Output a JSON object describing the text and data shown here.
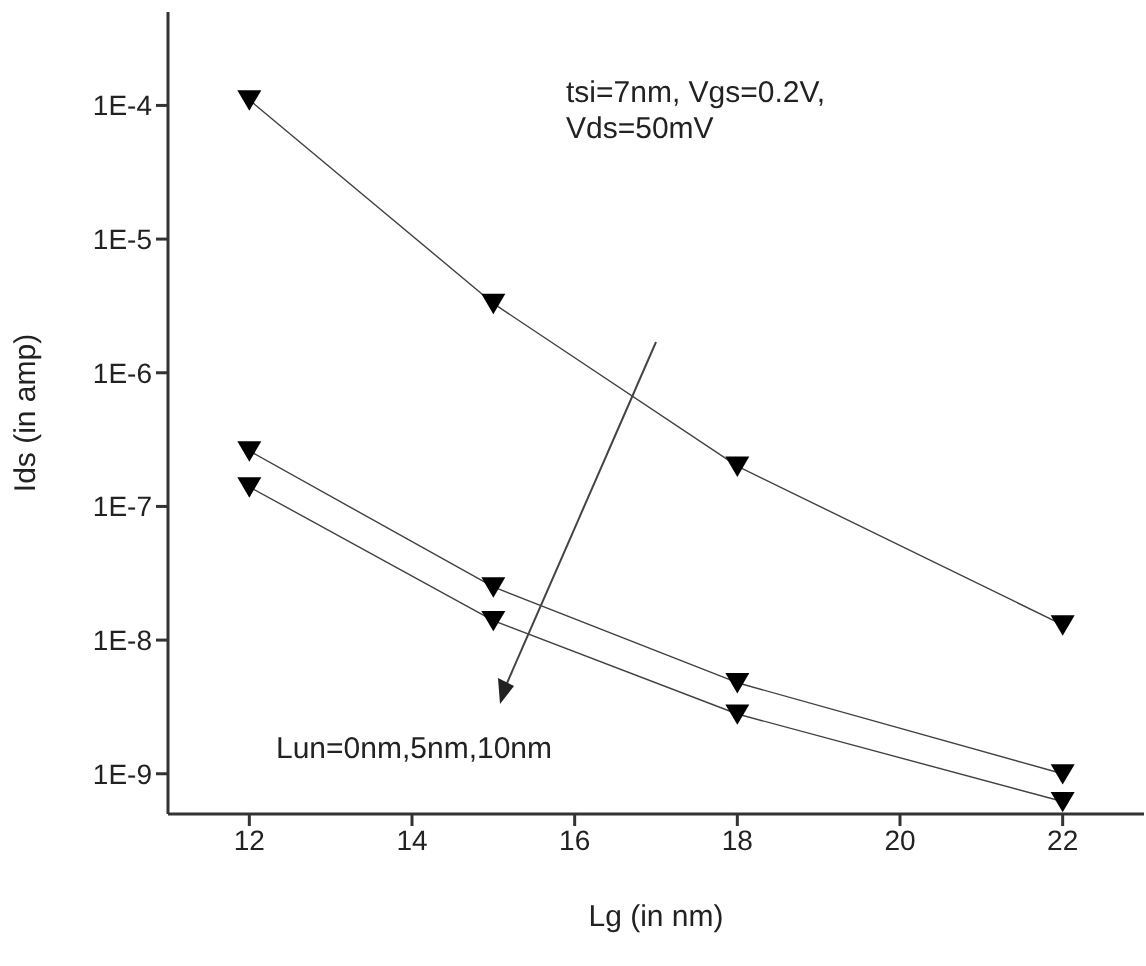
{
  "chart_data": {
    "type": "line",
    "xlabel": "Lg (in nm)",
    "ylabel": "Ids (in amp)",
    "x": [
      12,
      15,
      18,
      22
    ],
    "series": [
      {
        "color": "#000000",
        "values": [
          0.00011,
          3.3e-06,
          2e-07,
          1.3e-08
        ]
      },
      {
        "color": "#000000",
        "values": [
          2.6e-07,
          2.5e-08,
          4.8e-09,
          1e-09
        ]
      },
      {
        "color": "#000000",
        "values": [
          1.4e-07,
          1.4e-08,
          2.8e-09,
          6.2e-10
        ]
      }
    ],
    "log": "y",
    "xlim": [
      11,
      23
    ],
    "xticks": [
      12,
      14,
      16,
      18,
      20,
      22
    ],
    "ylim": [
      5e-10,
      0.0005
    ],
    "yticks": [
      {
        "value": 1e-09,
        "label": "1E-9"
      },
      {
        "value": 1e-08,
        "label": "1E-8"
      },
      {
        "value": 1e-07,
        "label": "1E-7"
      },
      {
        "value": 1e-06,
        "label": "1E-6"
      },
      {
        "value": 1e-05,
        "label": "1E-5"
      },
      {
        "value": 0.0001,
        "label": "1E-4"
      }
    ],
    "marker": "triangle",
    "grid": false,
    "legend": false,
    "annotations": [
      "tsi=7nm, Vgs=0.2V, Vds=50mV",
      "Lun=0nm,5nm,10nm"
    ]
  }
}
